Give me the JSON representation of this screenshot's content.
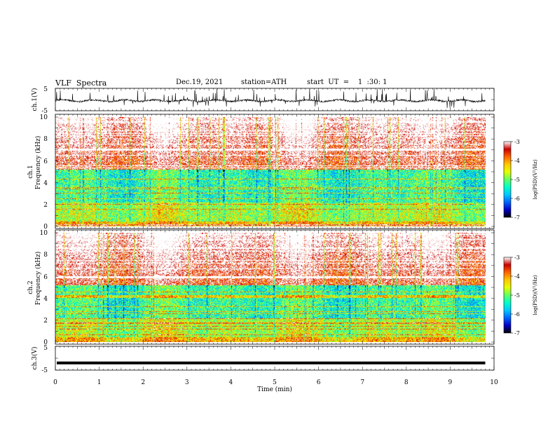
{
  "header": {
    "title": "VLF  Spectra",
    "date": "Dec.19, 2021",
    "station": "station=ATH",
    "start_ut": "start  UT  =    1  :30: 1"
  },
  "chart_data": [
    {
      "type": "line",
      "panel": "ch.1(V)",
      "ylabel": "ch.1(V)",
      "ylim": [
        -5,
        5
      ],
      "yticks": [
        "5",
        "-5"
      ],
      "xlim": [
        0,
        10
      ],
      "baseline_value": -0.5,
      "series": [
        {
          "color": "#000000"
        }
      ]
    },
    {
      "type": "heatmap",
      "panel": "ch.1",
      "ylabel_channel": "ch.1",
      "ylabel": "Frequency  (kHz)",
      "ylim": [
        0,
        10
      ],
      "yticks": [
        "0",
        "2",
        "4",
        "6",
        "8",
        "10"
      ],
      "xlim": [
        0,
        10
      ],
      "colorbar": {
        "label": "log(PSD)(V²/Hz)",
        "range": [
          -7,
          -3
        ],
        "ticks": [
          "-3",
          "-4",
          "-5",
          "-6",
          "-7"
        ]
      }
    },
    {
      "type": "heatmap",
      "panel": "ch.2",
      "ylabel_channel": "ch.2",
      "ylabel": "Frequency  (kHz)",
      "ylim": [
        0,
        10
      ],
      "yticks": [
        "0",
        "2",
        "4",
        "6",
        "8",
        "10"
      ],
      "xlim": [
        0,
        10
      ],
      "colorbar": {
        "label": "log(PSD)(V²/Hz)",
        "range": [
          -7,
          -3
        ],
        "ticks": [
          "-3",
          "-4",
          "-5",
          "-6",
          "-7"
        ]
      }
    },
    {
      "type": "line",
      "panel": "ch.3(V)",
      "ylabel": "ch.3(V)",
      "ylim": [
        -5,
        5
      ],
      "yticks": [
        "5",
        "-5"
      ],
      "xlim": [
        0,
        10
      ],
      "baseline_value": -2,
      "series": [
        {
          "color": "#000000"
        }
      ]
    }
  ],
  "xaxis": {
    "label": "Time  (min)",
    "ticks": [
      "0",
      "1",
      "2",
      "3",
      "4",
      "5",
      "6",
      "7",
      "8",
      "9",
      "10"
    ],
    "data_end": 9.8
  },
  "colors": {
    "colormap": [
      "#000000",
      "#0000c8",
      "#0064ff",
      "#00c8ff",
      "#00ffc8",
      "#64ff64",
      "#e6ff00",
      "#ffc800",
      "#ff6400",
      "#c80000",
      "#ffffff"
    ]
  }
}
